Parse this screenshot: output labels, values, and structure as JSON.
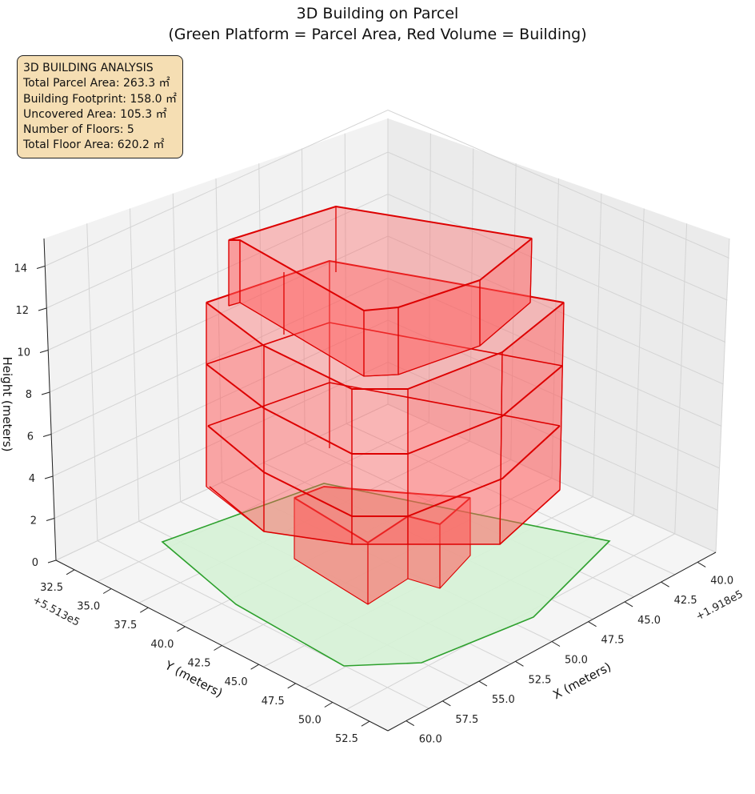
{
  "chart_data": {
    "type": "3d-polygons",
    "title_line1": "3D Building on Parcel",
    "title_line2": "(Green Platform = Parcel Area, Red Volume = Building)",
    "xlabel": "X (meters)",
    "ylabel": "Y (meters)",
    "zlabel": "Height (meters)",
    "x_offset_label": "+1.918e5",
    "y_offset_label": "+5.513e5",
    "x_ticks": [
      "40.0",
      "42.5",
      "45.0",
      "47.5",
      "50.0",
      "52.5",
      "55.0",
      "57.5",
      "60.0"
    ],
    "y_ticks": [
      "32.5",
      "35.0",
      "37.5",
      "40.0",
      "42.5",
      "45.0",
      "47.5",
      "50.0",
      "52.5"
    ],
    "z_ticks": [
      "0",
      "2",
      "4",
      "6",
      "8",
      "10",
      "12",
      "14"
    ],
    "grid": true,
    "info_box": {
      "heading": "3D BUILDING ANALYSIS",
      "total_parcel_area": "Total Parcel Area: 263.3 ㎡",
      "building_footprint": "Building Footprint: 158.0 ㎡",
      "uncovered_area": "Uncovered Area: 105.3 ㎡",
      "number_of_floors": "Number of Floors: 5",
      "total_floor_area": "Total Floor Area: 620.2 ㎡"
    },
    "series": [
      {
        "name": "Parcel",
        "color": "#2ca02c",
        "fill": "#d6f2d6"
      },
      {
        "name": "Building",
        "color": "#dd0000",
        "fill": "#ff5555"
      }
    ]
  }
}
